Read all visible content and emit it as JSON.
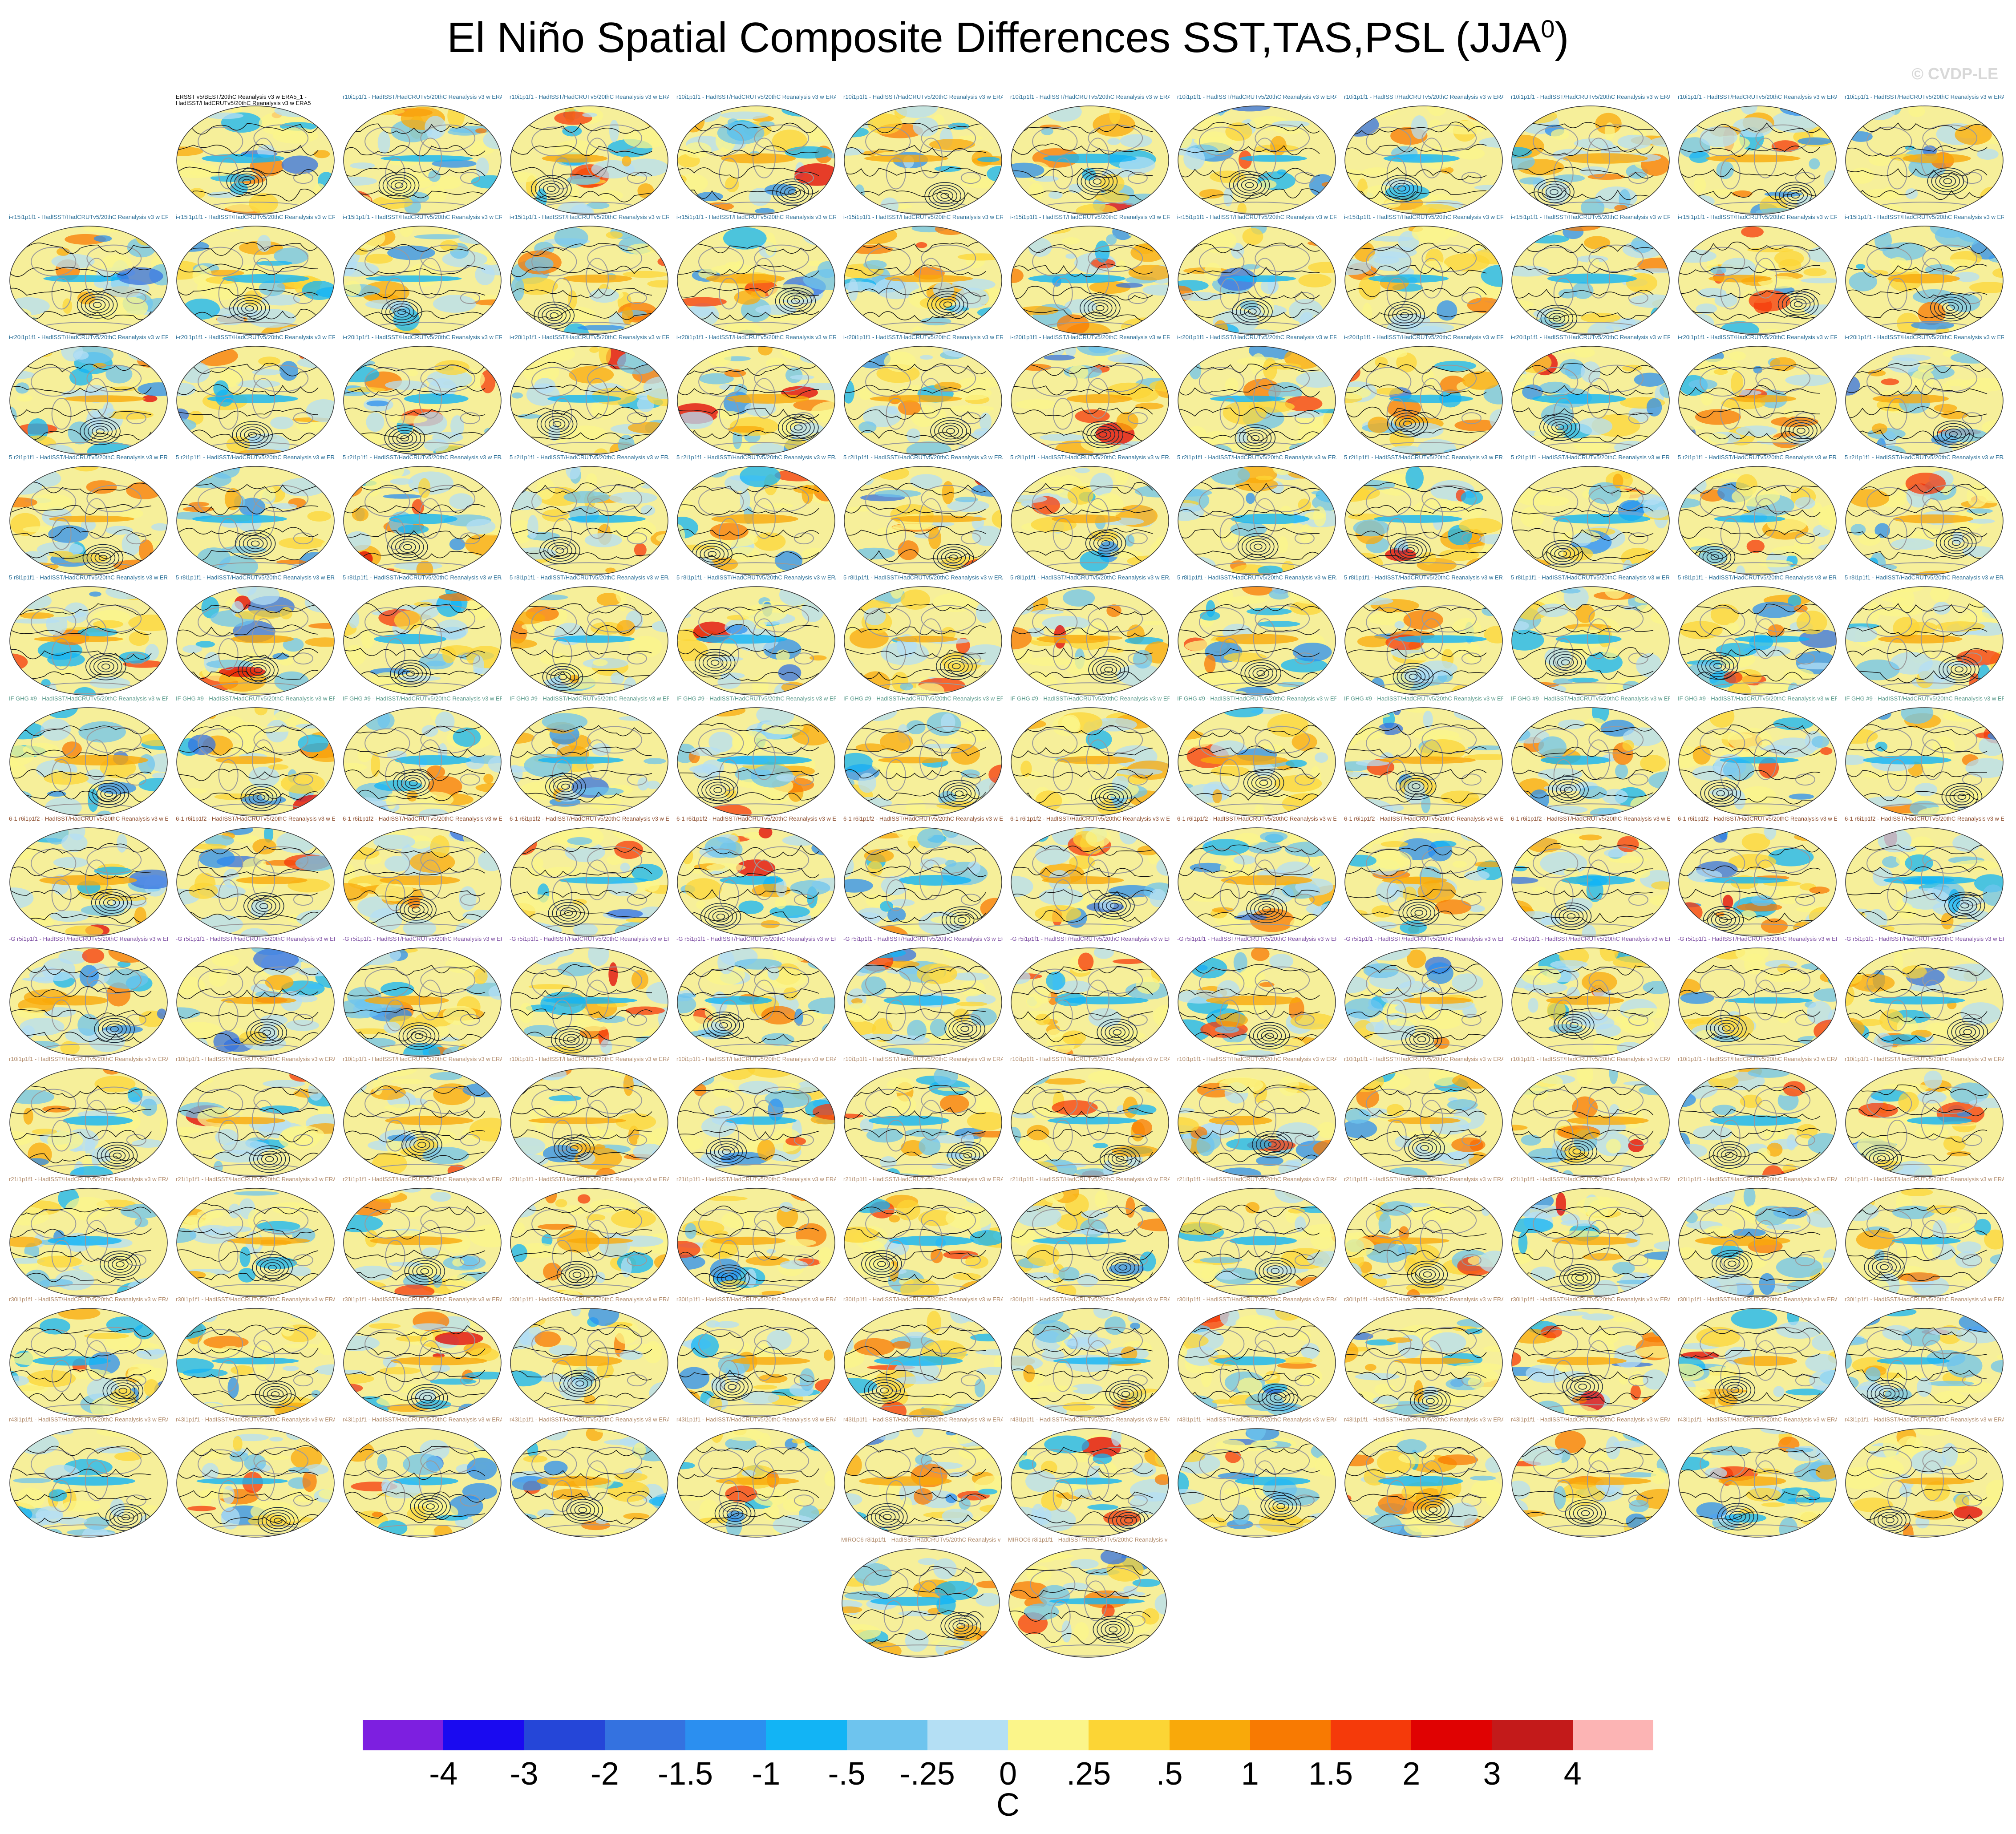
{
  "title": {
    "text": "El Niño Spatial Composite Differences SST,TAS,PSL (JJA",
    "superscript": "0",
    "closing": ")"
  },
  "copyright": "© CVDP-LE",
  "units": "C",
  "colorbar": {
    "colors": [
      "#7d1fe0",
      "#1a0af0",
      "#2546d8",
      "#3472e0",
      "#2b8ff0",
      "#12b4f5",
      "#6ec4ee",
      "#b4dff4",
      "#fbf58a",
      "#fcd535",
      "#f9a90a",
      "#f87a02",
      "#f53a0a",
      "#e00202",
      "#c31a1a",
      "#fcb4b4"
    ],
    "tick_labels": [
      "-4",
      "-3",
      "-2",
      "-1.5",
      "-1",
      "-.5",
      "-.25",
      "0",
      ".25",
      ".5",
      "1",
      "1.5",
      "2",
      "3",
      "4"
    ]
  },
  "panel_grid": {
    "row_counts": [
      11,
      12,
      12,
      12,
      12,
      12,
      12,
      12,
      12,
      12,
      12,
      12,
      2
    ],
    "label_colors": [
      "#2a6f97",
      "#2a6f97",
      "#2a6f97",
      "#2a6f97",
      "#2a6f97",
      "#5a9a8a",
      "#8a4a2a",
      "#7a4aa0",
      "#b08a6a",
      "#b08a6a",
      "#b08a6a",
      "#b08a6a",
      "#b08a6a"
    ]
  },
  "panels": {
    "first_label_line1": "ERSST v5/BEST/20thC Reanalysis v3 w ERA5_1 -",
    "first_label_line2": "HadISST/HadCRUTv5/20thC Reanalysis v3 w ERA5",
    "row_label_fragments": [
      "r10i1p1f1 - HadISST/HadCRUTv5/20thC Reanalysis v3 w ERA5",
      "i-r15i1p1f1 - HadISST/HadCRUTv5/20thC Reanalysis v3 w ERA5",
      "i-r20i1p1f1 - HadISST/HadCRUTv5/20thC Reanalysis v3 w ERA5",
      "5 r2i1p1f1 - HadISST/HadCRUTv5/20thC Reanalysis v3 w ERA5",
      "5 r8i1p1f1 - HadISST/HadCRUTv5/20thC Reanalysis v3 w ERA5",
      "IF GHG #9 - HadISST/HadCRUTv5/20thC Reanalysis v3 w ERA5",
      "6-1 r6i1p1f2 - HadISST/HadCRUTv5/20thC Reanalysis v3 w ERA5",
      "-G r5i1p1f1 - HadISST/HadCRUTv5/20thC Reanalysis v3 w ERA5",
      "r10i1p1f1 - HadISST/HadCRUTv5/20thC Reanalysis v3 w ERA5",
      "r21i1p1f1 - HadISST/HadCRUTv5/20thC Reanalysis v3 w ERA5",
      "r30i1p1f1 - HadISST/HadCRUTv5/20thC Reanalysis v3 w ERA5",
      "r43i1p1f1 - HadISST/HadCRUTv5/20thC Reanalysis v3 w ERA5",
      "MIROC6 r8i1p1f1 - HadISST/HadCRUTv5/20thC Reanalysis v3 w ERA5"
    ]
  }
}
